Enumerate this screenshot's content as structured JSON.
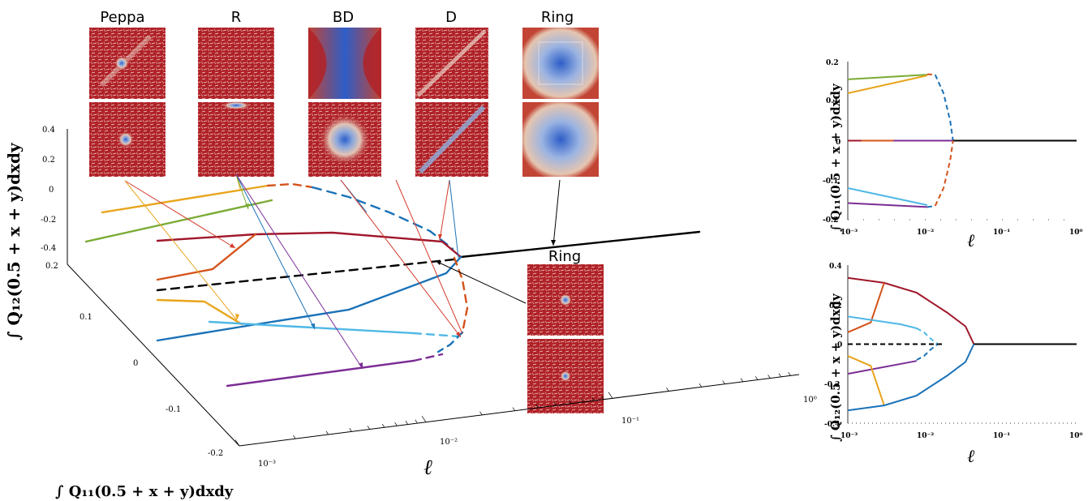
{
  "colors": {
    "peppa": "#e8a51c",
    "peppa2": "#7aab34",
    "red_dark": "#a0172b",
    "orange": "#d4531a",
    "blue": "#1a72b8",
    "light_blue": "#4fb8e6",
    "purple": "#7b2d95",
    "black": "#000000",
    "field_red": "#b02228",
    "field_blue": "#3a5fc0"
  },
  "snapshot_labels": {
    "peppa": "Peppa",
    "r": "R",
    "bd": "BD",
    "d": "D",
    "ring": "Ring",
    "ring2": "Ring"
  },
  "chart_data": [
    {
      "type": "line",
      "view": "3d",
      "x_label": "∫ Q₁₁(0.5 + x + y)dxdy",
      "y_label": "ℓ",
      "z_label": "∫ Q₁₂(0.5 + x + y)dxdy",
      "x_scale": "linear",
      "y_scale": "log",
      "x_ticks": [
        "0.2",
        "0.1",
        "0",
        "-0.1",
        "-0.2"
      ],
      "y_ticks": [
        "10⁻³",
        "10⁻²",
        "10⁻¹",
        "10⁰"
      ],
      "z_ticks": [
        "0.4",
        "0.2",
        "0",
        "-0.2",
        "-0.4"
      ]
    },
    {
      "type": "line",
      "x_label": "ℓ",
      "y_label": "∫ Q₁₁(0.5 + x + y)dxdy",
      "x_scale": "log",
      "xlim": [
        0.001,
        1
      ],
      "ylim": [
        -0.2,
        0.2
      ],
      "x_ticks": [
        "10⁻³",
        "10⁻²",
        "10⁻¹",
        "10⁰"
      ],
      "y_ticks": [
        "0.2",
        "0.1",
        "0",
        "-0.1",
        "-0.2"
      ],
      "series": [
        {
          "color": "#7aab34",
          "style": "solid",
          "x": [
            0.001,
            0.011
          ],
          "y": [
            0.155,
            0.167
          ]
        },
        {
          "color": "#e8a51c",
          "style": "solid",
          "x": [
            0.001,
            0.011
          ],
          "y": [
            0.12,
            0.165
          ]
        },
        {
          "color": "#d4531a",
          "style": "dashed",
          "x": [
            0.011,
            0.014
          ],
          "y": [
            0.168,
            0.167
          ]
        },
        {
          "color": "#1a72b8",
          "style": "dashed",
          "x": [
            0.014,
            0.018,
            0.022,
            0.024
          ],
          "y": [
            0.167,
            0.12,
            0.05,
            0.0
          ]
        },
        {
          "color": "#a0172b",
          "style": "solid",
          "x": [
            0.001,
            0.006
          ],
          "y": [
            0.0,
            0.0
          ]
        },
        {
          "color": "#d4531a",
          "style": "solid",
          "x": [
            0.0015,
            0.005
          ],
          "y": [
            0.0,
            0.0
          ]
        },
        {
          "color": "#7b2d95",
          "style": "solid",
          "x": [
            0.004,
            0.024
          ],
          "y": [
            0.0,
            0.0
          ]
        },
        {
          "color": "#000000",
          "style": "solid",
          "x": [
            0.024,
            1.0
          ],
          "y": [
            0.0,
            0.0
          ]
        },
        {
          "color": "#4fb8e6",
          "style": "solid",
          "x": [
            0.001,
            0.011
          ],
          "y": [
            -0.12,
            -0.163
          ]
        },
        {
          "color": "#7b2d95",
          "style": "solid",
          "x": [
            0.001,
            0.011
          ],
          "y": [
            -0.158,
            -0.168
          ]
        },
        {
          "color": "#1a72b8",
          "style": "dashed",
          "x": [
            0.011,
            0.014
          ],
          "y": [
            -0.168,
            -0.165
          ]
        },
        {
          "color": "#d4531a",
          "style": "dashed",
          "x": [
            0.014,
            0.018,
            0.022,
            0.024
          ],
          "y": [
            -0.165,
            -0.12,
            -0.05,
            0.0
          ]
        }
      ]
    },
    {
      "type": "line",
      "x_label": "ℓ",
      "y_label": "∫ Q₁₂(0.5 + x + y)dxdy",
      "x_scale": "log",
      "xlim": [
        0.001,
        1
      ],
      "ylim": [
        -0.4,
        0.4
      ],
      "x_ticks": [
        "10⁻³",
        "10⁻²",
        "10⁻¹",
        "10⁰"
      ],
      "y_ticks": [
        "0.4",
        "0.2",
        "0",
        "-0.2",
        "-0.4"
      ],
      "series": [
        {
          "color": "#a0172b",
          "style": "solid",
          "x": [
            0.001,
            0.003,
            0.008,
            0.02,
            0.035,
            0.045
          ],
          "y": [
            0.335,
            0.31,
            0.26,
            0.16,
            0.09,
            0.0
          ]
        },
        {
          "color": "#d4531a",
          "style": "solid",
          "x": [
            0.001,
            0.002,
            0.003
          ],
          "y": [
            0.06,
            0.11,
            0.31
          ]
        },
        {
          "color": "#4fb8e6",
          "style": "solid",
          "x": [
            0.001,
            0.005,
            0.008
          ],
          "y": [
            0.14,
            0.1,
            0.08
          ]
        },
        {
          "color": "#4fb8e6",
          "style": "dashed",
          "x": [
            0.008,
            0.01,
            0.012,
            0.015
          ],
          "y": [
            0.08,
            0.06,
            0.03,
            0.0
          ]
        },
        {
          "color": "#1a72b8",
          "style": "dashed",
          "x": [
            0.008,
            0.01,
            0.012,
            0.015
          ],
          "y": [
            -0.08,
            -0.06,
            -0.03,
            0.0
          ]
        },
        {
          "color": "#000000",
          "style": "dashed",
          "x": [
            0.001,
            0.018
          ],
          "y": [
            0.0,
            0.0
          ]
        },
        {
          "color": "#000000",
          "style": "solid",
          "x": [
            0.045,
            1.0
          ],
          "y": [
            0.0,
            0.0
          ]
        },
        {
          "color": "#7b2d95",
          "style": "solid",
          "x": [
            0.001,
            0.008
          ],
          "y": [
            -0.15,
            -0.085
          ]
        },
        {
          "color": "#e8a51c",
          "style": "solid",
          "x": [
            0.001,
            0.002,
            0.003
          ],
          "y": [
            -0.06,
            -0.11,
            -0.31
          ]
        },
        {
          "color": "#1a72b8",
          "style": "solid",
          "x": [
            0.001,
            0.003,
            0.008,
            0.02,
            0.035,
            0.045
          ],
          "y": [
            -0.335,
            -0.31,
            -0.26,
            -0.16,
            -0.09,
            0.0
          ]
        }
      ]
    }
  ]
}
